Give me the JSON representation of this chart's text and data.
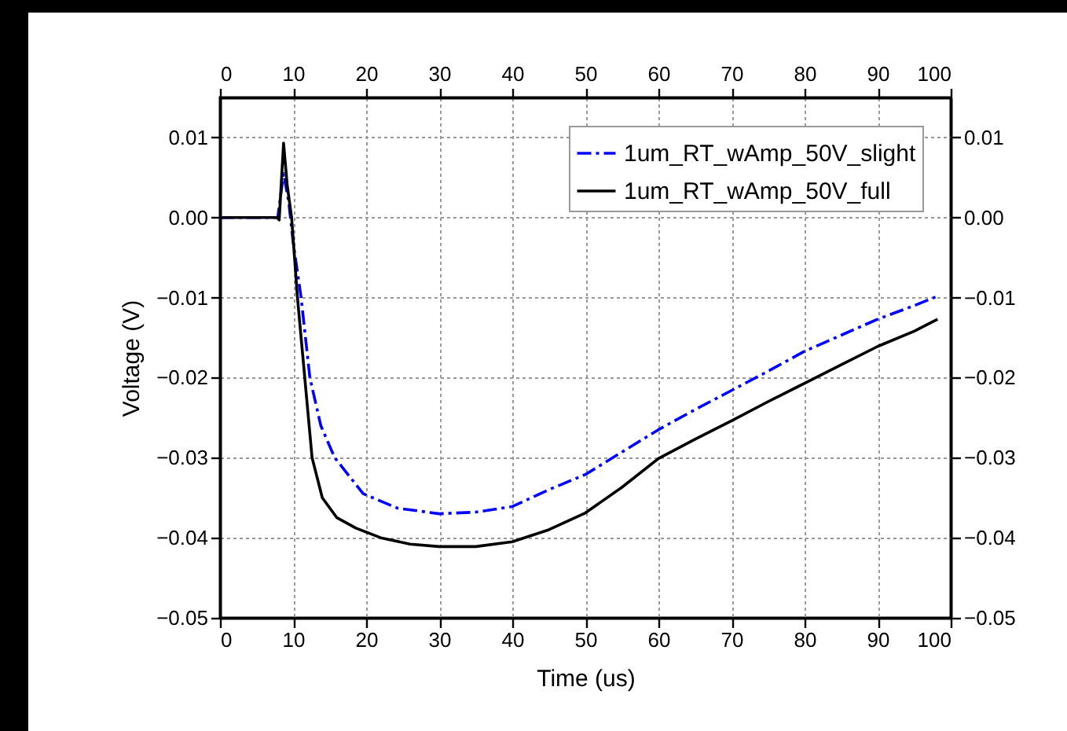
{
  "chart_data": {
    "type": "line",
    "xlabel": "Time (us)",
    "ylabel": "Voltage (V)",
    "xlim": [
      0,
      100
    ],
    "xticks": [
      0,
      10,
      20,
      30,
      40,
      50,
      60,
      70,
      80,
      90,
      100
    ],
    "x2lim": [
      0,
      100
    ],
    "x2ticks": [
      0,
      10,
      20,
      30,
      40,
      50,
      60,
      70,
      80,
      90,
      100
    ],
    "ylim": [
      -0.05,
      0.015
    ],
    "yticks": [
      {
        "value": -0.05,
        "label": "−0.05"
      },
      {
        "value": -0.04,
        "label": "−0.04"
      },
      {
        "value": -0.03,
        "label": "−0.03"
      },
      {
        "value": -0.02,
        "label": "−0.02"
      },
      {
        "value": -0.01,
        "label": "−0.01"
      },
      {
        "value": 0,
        "label": "0.00"
      },
      0.01
    ],
    "y2lim": [
      -0.05,
      0.015
    ],
    "y2ticks": [
      {
        "value": -0.05,
        "label": "−0.05"
      },
      {
        "value": -0.04,
        "label": "−0.04"
      },
      {
        "value": -0.03,
        "label": "−0.03"
      },
      {
        "value": -0.02,
        "label": "−0.02"
      },
      {
        "value": -0.01,
        "label": "−0.01"
      },
      {
        "value": 0,
        "label": "0.00"
      },
      0.01
    ],
    "grid": true,
    "legend": "top right",
    "series": [
      {
        "name": "1um_RT_wAmp_50V_slight",
        "color": "#0000ff",
        "line_style": "dashdot",
        "x": [
          0,
          7.9,
          8.7,
          9.4,
          10,
          11.1,
          12.3,
          13.8,
          15.7,
          19.6,
          24.3,
          30,
          35,
          40,
          45,
          50,
          55,
          60,
          65,
          70,
          75,
          80,
          85,
          90,
          95,
          98
        ],
        "values": [
          0,
          0,
          0.0055,
          0.002,
          -0.003,
          -0.01,
          -0.02,
          -0.026,
          -0.03,
          -0.0345,
          -0.0363,
          -0.037,
          -0.0368,
          -0.0361,
          -0.034,
          -0.0321,
          -0.0293,
          -0.0265,
          -0.024,
          -0.0216,
          -0.0192,
          -0.0167,
          -0.0147,
          -0.0127,
          -0.011,
          -0.0099
        ]
      },
      {
        "name": "1um_RT_wAmp_50V_full",
        "color": "#000000",
        "line_style": "solid",
        "x": [
          0,
          7.8,
          8.1,
          8.7,
          9.2,
          9.8,
          10.6,
          11.6,
          12.6,
          14,
          16,
          18.6,
          22,
          26,
          30,
          35,
          40,
          45,
          50,
          55,
          60,
          65,
          70,
          75,
          80,
          85,
          90,
          95,
          98.2
        ],
        "values": [
          0,
          0,
          -0.0003,
          0.0093,
          0.004,
          0,
          -0.01,
          -0.02,
          -0.03,
          -0.035,
          -0.0375,
          -0.0388,
          -0.04,
          -0.0408,
          -0.0411,
          -0.0411,
          -0.0405,
          -0.039,
          -0.0369,
          -0.0337,
          -0.0301,
          -0.0277,
          -0.0254,
          -0.023,
          -0.0207,
          -0.0184,
          -0.0161,
          -0.0142,
          -0.0127
        ]
      }
    ]
  }
}
